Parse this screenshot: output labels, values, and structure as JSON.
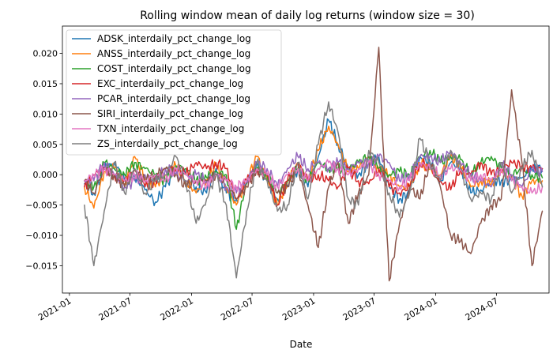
{
  "chart_data": {
    "type": "line",
    "title": "Rolling window mean of daily log returns (window size = 30)",
    "xlabel": "Date",
    "ylabel": "",
    "x_type": "date",
    "xlim": [
      "2020-12-11",
      "2024-12-05"
    ],
    "ylim": [
      -0.0195,
      0.0245
    ],
    "x_ticks": [
      "2021-01",
      "2021-07",
      "2022-01",
      "2022-07",
      "2023-01",
      "2023-07",
      "2024-01",
      "2024-07"
    ],
    "y_ticks": [
      -0.015,
      -0.01,
      -0.005,
      0.0,
      0.005,
      0.01,
      0.015,
      0.02
    ],
    "grid": false,
    "legend_position": "upper-left",
    "x": [
      "2021-02-15",
      "2021-03-15",
      "2021-04-15",
      "2021-05-15",
      "2021-06-15",
      "2021-07-15",
      "2021-08-15",
      "2021-09-15",
      "2021-10-15",
      "2021-11-15",
      "2021-12-15",
      "2022-01-15",
      "2022-02-15",
      "2022-03-15",
      "2022-04-15",
      "2022-05-15",
      "2022-06-15",
      "2022-07-15",
      "2022-08-15",
      "2022-09-15",
      "2022-10-15",
      "2022-11-15",
      "2022-12-15",
      "2023-01-15",
      "2023-02-15",
      "2023-03-15",
      "2023-04-15",
      "2023-05-15",
      "2023-06-15",
      "2023-07-15",
      "2023-08-15",
      "2023-09-15",
      "2023-10-15",
      "2023-11-15",
      "2023-12-15",
      "2024-01-15",
      "2024-02-15",
      "2024-03-15",
      "2024-04-15",
      "2024-05-15",
      "2024-06-15",
      "2024-07-15",
      "2024-08-15",
      "2024-09-15",
      "2024-10-15",
      "2024-11-15"
    ],
    "series": [
      {
        "name": "ADSK_interdaily_pct_change_log",
        "color": "#1f77b4",
        "values": [
          -0.0015,
          -0.003,
          0.001,
          0.002,
          -0.001,
          0.0,
          -0.0025,
          -0.0045,
          -0.002,
          0.001,
          0.0,
          -0.002,
          -0.003,
          0.001,
          -0.003,
          -0.004,
          -0.0015,
          0.002,
          -0.001,
          -0.004,
          -0.002,
          0.001,
          -0.002,
          0.003,
          0.009,
          0.005,
          0.001,
          0.0,
          0.002,
          0.003,
          -0.002,
          -0.004,
          -0.003,
          0.003,
          0.002,
          -0.001,
          0.002,
          0.001,
          -0.003,
          -0.0025,
          -0.001,
          -0.001,
          -0.001,
          -0.0005,
          0.001,
          0.001
        ]
      },
      {
        "name": "ANSS_interdaily_pct_change_log",
        "color": "#ff7f0e",
        "values": [
          -0.002,
          -0.0055,
          0.0005,
          0.001,
          -0.0015,
          0.003,
          -0.0005,
          -0.002,
          0.0,
          0.0015,
          -0.001,
          -0.003,
          -0.001,
          0.0015,
          -0.002,
          -0.005,
          -0.001,
          0.003,
          -0.0005,
          -0.005,
          -0.001,
          0.002,
          -0.001,
          0.004,
          0.008,
          0.005,
          0.0005,
          0.001,
          0.003,
          0.001,
          0.0,
          -0.002,
          -0.002,
          0.002,
          0.001,
          0.0,
          0.003,
          0.0015,
          -0.002,
          -0.001,
          -0.0015,
          0.0005,
          -0.0005,
          -0.0035,
          -0.001,
          -0.001
        ]
      },
      {
        "name": "COST_interdaily_pct_change_log",
        "color": "#2ca02c",
        "values": [
          -0.001,
          -0.002,
          0.002,
          0.001,
          0.0,
          0.002,
          0.001,
          0.0,
          -0.001,
          0.0015,
          0.001,
          -0.001,
          -0.0005,
          0.0005,
          0.0,
          -0.009,
          -0.001,
          0.001,
          0.0,
          -0.003,
          -0.001,
          0.001,
          -0.001,
          0.002,
          0.001,
          0.001,
          0.001,
          0.002,
          0.003,
          0.001,
          0.0,
          0.0005,
          0.0,
          0.003,
          0.004,
          0.002,
          0.003,
          0.0025,
          0.0,
          0.002,
          0.003,
          0.001,
          0.0,
          0.001,
          0.0,
          -0.0005
        ]
      },
      {
        "name": "EXC_interdaily_pct_change_log",
        "color": "#d62728",
        "values": [
          -0.002,
          0.0,
          0.001,
          0.0,
          -0.001,
          0.001,
          -0.002,
          -0.001,
          0.001,
          0.001,
          0.0,
          0.002,
          0.001,
          0.002,
          0.001,
          -0.004,
          -0.001,
          0.001,
          0.0,
          -0.005,
          -0.001,
          0.002,
          -0.001,
          0.0,
          -0.001,
          -0.002,
          0.001,
          -0.001,
          -0.0015,
          0.001,
          -0.002,
          -0.003,
          -0.002,
          0.002,
          0.001,
          -0.001,
          -0.0025,
          0.001,
          0.0,
          0.002,
          0.0,
          0.001,
          0.002,
          0.0015,
          0.001,
          0.001
        ]
      },
      {
        "name": "PCAR_interdaily_pct_change_log",
        "color": "#9467bd",
        "values": [
          -0.001,
          -0.001,
          0.002,
          0.0,
          -0.002,
          -0.001,
          0.0,
          -0.001,
          0.001,
          0.0,
          -0.001,
          0.0,
          -0.001,
          0.0,
          -0.002,
          -0.003,
          -0.001,
          0.002,
          0.001,
          -0.002,
          0.001,
          0.003,
          0.001,
          0.002,
          0.001,
          0.002,
          0.001,
          0.002,
          0.002,
          0.003,
          0.002,
          -0.001,
          0.0,
          0.003,
          0.003,
          0.002,
          0.004,
          0.002,
          0.0,
          -0.001,
          -0.002,
          0.002,
          0.0,
          -0.002,
          0.001,
          0.0005
        ]
      },
      {
        "name": "SIRI_interdaily_pct_change_log",
        "color": "#8c564b",
        "values": [
          -0.001,
          -0.003,
          0.001,
          0.0,
          -0.002,
          0.001,
          -0.001,
          0.0,
          0.001,
          0.0,
          -0.002,
          -0.001,
          -0.001,
          0.0,
          -0.001,
          -0.004,
          -0.002,
          0.001,
          -0.001,
          -0.003,
          -0.002,
          0.001,
          -0.005,
          -0.012,
          -0.002,
          0.002,
          -0.008,
          -0.003,
          0.0,
          0.021,
          -0.0175,
          -0.008,
          -0.002,
          -0.004,
          0.002,
          -0.002,
          -0.01,
          -0.011,
          -0.013,
          -0.008,
          -0.005,
          -0.004,
          0.014,
          0.002,
          -0.015,
          -0.006
        ]
      },
      {
        "name": "TXN_interdaily_pct_change_log",
        "color": "#e377c2",
        "values": [
          -0.001,
          0.0,
          0.001,
          0.0,
          -0.001,
          0.0,
          -0.001,
          0.0,
          -0.001,
          0.001,
          0.0,
          -0.001,
          -0.002,
          0.0,
          -0.001,
          -0.002,
          -0.001,
          0.001,
          0.0,
          -0.002,
          0.0,
          0.001,
          -0.001,
          0.001,
          0.002,
          0.001,
          0.0,
          0.001,
          0.002,
          0.0,
          -0.001,
          -0.002,
          -0.001,
          0.002,
          0.001,
          0.0,
          0.001,
          0.001,
          -0.001,
          0.0,
          -0.001,
          0.001,
          -0.001,
          -0.002,
          -0.003,
          -0.002
        ]
      },
      {
        "name": "ZS_interdaily_pct_change_log",
        "color": "#7f7f7f",
        "values": [
          -0.005,
          -0.015,
          -0.006,
          0.002,
          -0.003,
          0.001,
          -0.003,
          -0.001,
          0.0,
          0.003,
          -0.001,
          -0.008,
          -0.004,
          0.0,
          -0.005,
          -0.017,
          -0.006,
          0.002,
          -0.001,
          -0.006,
          -0.005,
          0.002,
          -0.004,
          0.005,
          0.012,
          0.007,
          -0.004,
          -0.005,
          0.004,
          0.002,
          -0.003,
          -0.007,
          -0.003,
          0.006,
          0.002,
          -0.001,
          0.004,
          0.001,
          -0.004,
          -0.003,
          -0.004,
          0.002,
          -0.003,
          0.001,
          0.004,
          -0.002
        ]
      }
    ]
  }
}
